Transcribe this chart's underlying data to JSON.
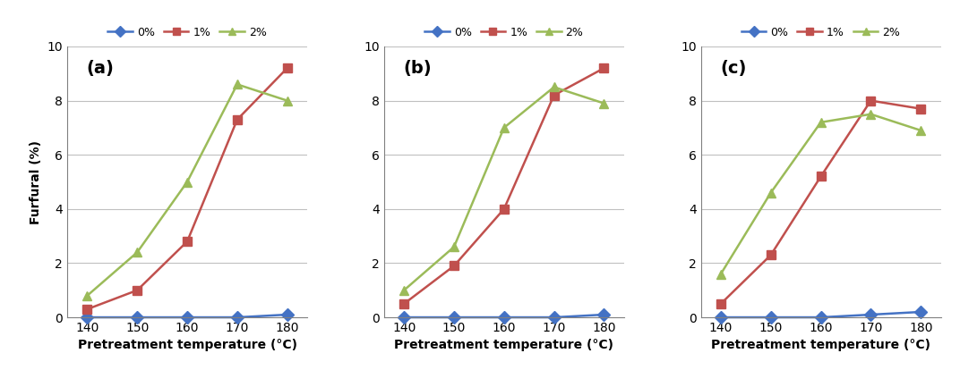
{
  "x": [
    140,
    150,
    160,
    170,
    180
  ],
  "subplots": [
    {
      "label": "(a)",
      "series": {
        "0%": [
          0.0,
          0.0,
          0.0,
          0.0,
          0.1
        ],
        "1%": [
          0.3,
          1.0,
          2.8,
          7.3,
          9.2
        ],
        "2%": [
          0.8,
          2.4,
          5.0,
          8.6,
          8.0
        ]
      }
    },
    {
      "label": "(b)",
      "series": {
        "0%": [
          0.0,
          0.0,
          0.0,
          0.0,
          0.1
        ],
        "1%": [
          0.5,
          1.9,
          4.0,
          8.2,
          9.2
        ],
        "2%": [
          1.0,
          2.6,
          7.0,
          8.5,
          7.9
        ]
      }
    },
    {
      "label": "(c)",
      "series": {
        "0%": [
          0.0,
          0.0,
          0.0,
          0.1,
          0.2
        ],
        "1%": [
          0.5,
          2.3,
          5.2,
          8.0,
          7.7
        ],
        "2%": [
          1.6,
          4.6,
          7.2,
          7.5,
          6.9
        ]
      }
    }
  ],
  "colors": {
    "0%": "#4472C4",
    "1%": "#C0504D",
    "2%": "#9BBB59"
  },
  "markers": {
    "0%": "D",
    "1%": "s",
    "2%": "^"
  },
  "markersize": 7,
  "linewidth": 1.8,
  "ylabel": "Furfural (%)",
  "xlabel": "Pretreatment temperature (°C)",
  "ylim": [
    0,
    10
  ],
  "yticks": [
    0,
    2,
    4,
    6,
    8,
    10
  ],
  "xticks": [
    140,
    150,
    160,
    170,
    180
  ],
  "legend_labels": [
    "0%",
    "1%",
    "2%"
  ],
  "background_color": "#ffffff",
  "grid_color": "#c0c0c0",
  "spine_color": "#808080",
  "tick_labelsize": 10,
  "axis_labelsize": 10,
  "subplot_labelsize": 14
}
